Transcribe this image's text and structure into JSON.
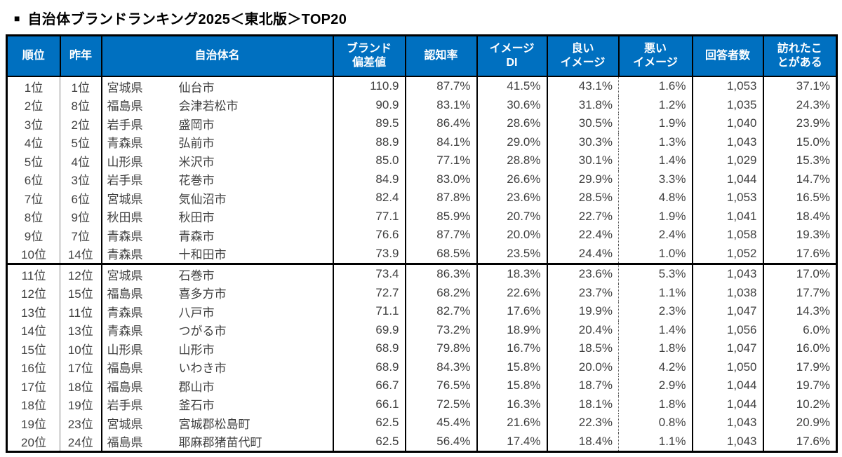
{
  "page": {
    "bullet": "■",
    "title": "自治体ブランドランキング2025＜東北版＞TOP20"
  },
  "colors": {
    "header_bg": "#0070C0",
    "header_text": "#FFFFFF",
    "body_text": "#404040",
    "border": "#000000"
  },
  "table": {
    "columns": [
      {
        "key": "rank",
        "label": "順位"
      },
      {
        "key": "last",
        "label": "昨年"
      },
      {
        "key": "name",
        "label": "自治体名"
      },
      {
        "key": "score",
        "label": "ブランド\n偏差値"
      },
      {
        "key": "recog",
        "label": "認知率"
      },
      {
        "key": "di",
        "label": "イメージ\nDI"
      },
      {
        "key": "good",
        "label": "良い\nイメージ"
      },
      {
        "key": "bad",
        "label": "悪い\nイメージ"
      },
      {
        "key": "resp",
        "label": "回答者数"
      },
      {
        "key": "visited",
        "label": "訪れたこ\nとがある"
      }
    ],
    "rows": [
      {
        "rank": "1位",
        "last_year": "1位",
        "prefecture": "宮城県",
        "city": "仙台市",
        "brand_score": "110.9",
        "awareness": "87.7%",
        "image_di": "41.5%",
        "good_image": "43.1%",
        "bad_image": "1.6%",
        "respondents": "1,053",
        "visited": "37.1%"
      },
      {
        "rank": "2位",
        "last_year": "8位",
        "prefecture": "福島県",
        "city": "会津若松市",
        "brand_score": "90.9",
        "awareness": "83.1%",
        "image_di": "30.6%",
        "good_image": "31.8%",
        "bad_image": "1.2%",
        "respondents": "1,035",
        "visited": "24.3%"
      },
      {
        "rank": "3位",
        "last_year": "2位",
        "prefecture": "岩手県",
        "city": "盛岡市",
        "brand_score": "89.5",
        "awareness": "86.4%",
        "image_di": "28.6%",
        "good_image": "30.5%",
        "bad_image": "1.9%",
        "respondents": "1,040",
        "visited": "23.9%"
      },
      {
        "rank": "4位",
        "last_year": "5位",
        "prefecture": "青森県",
        "city": "弘前市",
        "brand_score": "88.9",
        "awareness": "84.1%",
        "image_di": "29.0%",
        "good_image": "30.3%",
        "bad_image": "1.3%",
        "respondents": "1,043",
        "visited": "15.0%"
      },
      {
        "rank": "5位",
        "last_year": "4位",
        "prefecture": "山形県",
        "city": "米沢市",
        "brand_score": "85.0",
        "awareness": "77.1%",
        "image_di": "28.8%",
        "good_image": "30.1%",
        "bad_image": "1.4%",
        "respondents": "1,029",
        "visited": "15.3%"
      },
      {
        "rank": "6位",
        "last_year": "3位",
        "prefecture": "岩手県",
        "city": "花巻市",
        "brand_score": "84.9",
        "awareness": "83.0%",
        "image_di": "26.6%",
        "good_image": "29.9%",
        "bad_image": "3.3%",
        "respondents": "1,044",
        "visited": "14.7%"
      },
      {
        "rank": "7位",
        "last_year": "6位",
        "prefecture": "宮城県",
        "city": "気仙沼市",
        "brand_score": "82.4",
        "awareness": "87.8%",
        "image_di": "23.6%",
        "good_image": "28.5%",
        "bad_image": "4.8%",
        "respondents": "1,053",
        "visited": "16.5%"
      },
      {
        "rank": "8位",
        "last_year": "9位",
        "prefecture": "秋田県",
        "city": "秋田市",
        "brand_score": "77.1",
        "awareness": "85.9%",
        "image_di": "20.7%",
        "good_image": "22.7%",
        "bad_image": "1.9%",
        "respondents": "1,041",
        "visited": "18.4%"
      },
      {
        "rank": "9位",
        "last_year": "7位",
        "prefecture": "青森県",
        "city": "青森市",
        "brand_score": "76.6",
        "awareness": "87.7%",
        "image_di": "20.0%",
        "good_image": "22.4%",
        "bad_image": "2.4%",
        "respondents": "1,058",
        "visited": "19.3%"
      },
      {
        "rank": "10位",
        "last_year": "14位",
        "prefecture": "青森県",
        "city": "十和田市",
        "brand_score": "73.9",
        "awareness": "68.5%",
        "image_di": "23.5%",
        "good_image": "24.4%",
        "bad_image": "1.0%",
        "respondents": "1,052",
        "visited": "17.6%"
      },
      {
        "rank": "11位",
        "last_year": "12位",
        "prefecture": "宮城県",
        "city": "石巻市",
        "brand_score": "73.4",
        "awareness": "86.3%",
        "image_di": "18.3%",
        "good_image": "23.6%",
        "bad_image": "5.3%",
        "respondents": "1,043",
        "visited": "17.0%"
      },
      {
        "rank": "12位",
        "last_year": "15位",
        "prefecture": "福島県",
        "city": "喜多方市",
        "brand_score": "72.7",
        "awareness": "68.2%",
        "image_di": "22.6%",
        "good_image": "23.7%",
        "bad_image": "1.1%",
        "respondents": "1,038",
        "visited": "17.7%"
      },
      {
        "rank": "13位",
        "last_year": "11位",
        "prefecture": "青森県",
        "city": "八戸市",
        "brand_score": "71.1",
        "awareness": "82.7%",
        "image_di": "17.6%",
        "good_image": "19.9%",
        "bad_image": "2.3%",
        "respondents": "1,047",
        "visited": "14.3%"
      },
      {
        "rank": "14位",
        "last_year": "13位",
        "prefecture": "青森県",
        "city": "つがる市",
        "brand_score": "69.9",
        "awareness": "73.2%",
        "image_di": "18.9%",
        "good_image": "20.4%",
        "bad_image": "1.4%",
        "respondents": "1,056",
        "visited": "6.0%"
      },
      {
        "rank": "15位",
        "last_year": "10位",
        "prefecture": "山形県",
        "city": "山形市",
        "brand_score": "68.9",
        "awareness": "79.8%",
        "image_di": "16.7%",
        "good_image": "18.5%",
        "bad_image": "1.8%",
        "respondents": "1,047",
        "visited": "16.0%"
      },
      {
        "rank": "16位",
        "last_year": "17位",
        "prefecture": "福島県",
        "city": "いわき市",
        "brand_score": "68.9",
        "awareness": "84.3%",
        "image_di": "15.8%",
        "good_image": "20.0%",
        "bad_image": "4.2%",
        "respondents": "1,050",
        "visited": "17.9%"
      },
      {
        "rank": "17位",
        "last_year": "18位",
        "prefecture": "福島県",
        "city": "郡山市",
        "brand_score": "66.7",
        "awareness": "76.5%",
        "image_di": "15.8%",
        "good_image": "18.7%",
        "bad_image": "2.9%",
        "respondents": "1,044",
        "visited": "19.7%"
      },
      {
        "rank": "18位",
        "last_year": "19位",
        "prefecture": "岩手県",
        "city": "釜石市",
        "brand_score": "66.1",
        "awareness": "72.5%",
        "image_di": "16.3%",
        "good_image": "18.1%",
        "bad_image": "1.8%",
        "respondents": "1,044",
        "visited": "10.2%"
      },
      {
        "rank": "19位",
        "last_year": "23位",
        "prefecture": "宮城県",
        "city": "宮城郡松島町",
        "brand_score": "62.5",
        "awareness": "45.4%",
        "image_di": "21.6%",
        "good_image": "22.3%",
        "bad_image": "0.8%",
        "respondents": "1,043",
        "visited": "20.9%"
      },
      {
        "rank": "20位",
        "last_year": "24位",
        "prefecture": "福島県",
        "city": "耶麻郡猪苗代町",
        "brand_score": "62.5",
        "awareness": "56.4%",
        "image_di": "17.4%",
        "good_image": "18.4%",
        "bad_image": "1.1%",
        "respondents": "1,043",
        "visited": "17.6%"
      }
    ]
  }
}
